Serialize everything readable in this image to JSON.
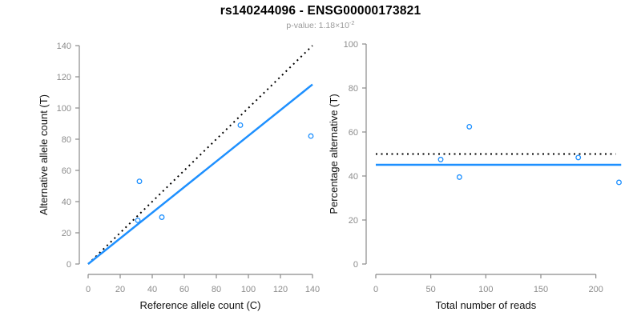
{
  "header": {
    "title": "rs140244096 - ENSG00000173821",
    "subtitle_prefix": "p-value: 1.18×10",
    "subtitle_exponent": "-2"
  },
  "colors": {
    "accent_blue": "#1E90FF",
    "axis_gray": "#8a8a8a",
    "tick_label_gray": "#8c8c8c",
    "axis_title_black": "#111111",
    "subtitle_gray": "#9a9a9a",
    "dotted_black": "#000000",
    "background": "#ffffff"
  },
  "chart_data": [
    {
      "type": "scatter",
      "panel": "left",
      "xlabel": "Reference allele count (C)",
      "ylabel": "Alternative allele count (T)",
      "xlim": [
        0,
        140
      ],
      "ylim": [
        0,
        140
      ],
      "xticks": [
        0,
        20,
        40,
        60,
        80,
        100,
        120,
        140
      ],
      "yticks": [
        0,
        20,
        40,
        60,
        80,
        100,
        120,
        140
      ],
      "grid": false,
      "marker": "open-circle",
      "point_color": "#1E90FF",
      "points": [
        {
          "x": 32,
          "y": 53
        },
        {
          "x": 31,
          "y": 28
        },
        {
          "x": 46,
          "y": 30
        },
        {
          "x": 95,
          "y": 89
        },
        {
          "x": 139,
          "y": 82
        }
      ],
      "lines": [
        {
          "name": "identity-line",
          "style": "dotted",
          "color": "#000000",
          "width": 2,
          "x1": 0,
          "y1": 0,
          "x2": 140,
          "y2": 140
        },
        {
          "name": "fit-line",
          "style": "solid",
          "color": "#1E90FF",
          "width": 2.5,
          "x1": 0,
          "y1": 0,
          "x2": 140,
          "y2": 115.1
        }
      ]
    },
    {
      "type": "scatter",
      "panel": "right",
      "xlabel": "Total number of reads",
      "ylabel": "Percentage alternative (T)",
      "xlim": [
        0,
        225
      ],
      "ylim": [
        0,
        100
      ],
      "xticks": [
        0,
        50,
        100,
        150,
        200
      ],
      "yticks": [
        0,
        20,
        40,
        60,
        80,
        100
      ],
      "grid": false,
      "marker": "open-circle",
      "point_color": "#1E90FF",
      "points": [
        {
          "x": 85,
          "y": 62.4
        },
        {
          "x": 59,
          "y": 47.5
        },
        {
          "x": 76,
          "y": 39.5
        },
        {
          "x": 184,
          "y": 48.4
        },
        {
          "x": 221,
          "y": 37.1
        }
      ],
      "lines": [
        {
          "name": "expected-50pct-line",
          "style": "dotted",
          "color": "#000000",
          "width": 2,
          "x1": 0,
          "y1": 50,
          "x2": 218,
          "y2": 50
        },
        {
          "name": "observed-pct-line",
          "style": "solid",
          "color": "#1E90FF",
          "width": 2.5,
          "x1": 0,
          "y1": 45.1,
          "x2": 223,
          "y2": 45.1
        }
      ]
    }
  ]
}
